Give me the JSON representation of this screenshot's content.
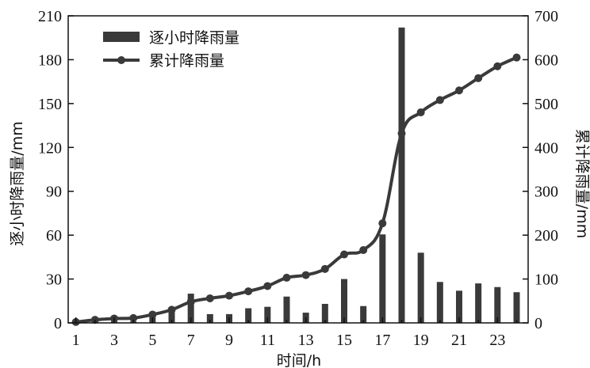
{
  "chart_data": {
    "type": "bar",
    "x": [
      1,
      2,
      3,
      4,
      5,
      6,
      7,
      8,
      9,
      10,
      11,
      12,
      13,
      14,
      15,
      16,
      17,
      18,
      19,
      20,
      21,
      22,
      23,
      24
    ],
    "xticks": [
      1,
      3,
      5,
      7,
      9,
      11,
      13,
      15,
      17,
      19,
      21,
      23
    ],
    "xlim": [
      0.6,
      24.6
    ],
    "xlabel": "时间/h",
    "y_left": {
      "label": "逐小时降雨量/mm",
      "lim": [
        0,
        210
      ],
      "ticks": [
        0,
        30,
        60,
        90,
        120,
        150,
        180,
        210
      ]
    },
    "y_right": {
      "label": "累计降雨量/mm",
      "lim": [
        0,
        700
      ],
      "ticks": [
        0,
        100,
        200,
        300,
        400,
        500,
        600,
        700
      ]
    },
    "series": [
      {
        "name": "逐小时降雨量",
        "type": "bar",
        "axis": "left",
        "values": [
          0.5,
          2,
          1,
          1,
          5,
          9,
          20,
          6,
          6,
          10,
          11,
          18,
          7,
          13,
          30,
          11.5,
          60.5,
          202,
          48,
          28,
          22,
          27,
          24.5,
          21
        ]
      },
      {
        "name": "累计降雨量",
        "type": "line",
        "axis": "right",
        "values": [
          2,
          7,
          10,
          11,
          19,
          30,
          48,
          56,
          62,
          72,
          84,
          103,
          109,
          123,
          156,
          166,
          227,
          432,
          480,
          508,
          530,
          558,
          585,
          605
        ]
      }
    ],
    "legend_position": "top-left",
    "grid": false,
    "colors": {
      "bar": "#3a3a3a",
      "line": "#3a3a3a",
      "axis": "#111111"
    }
  }
}
